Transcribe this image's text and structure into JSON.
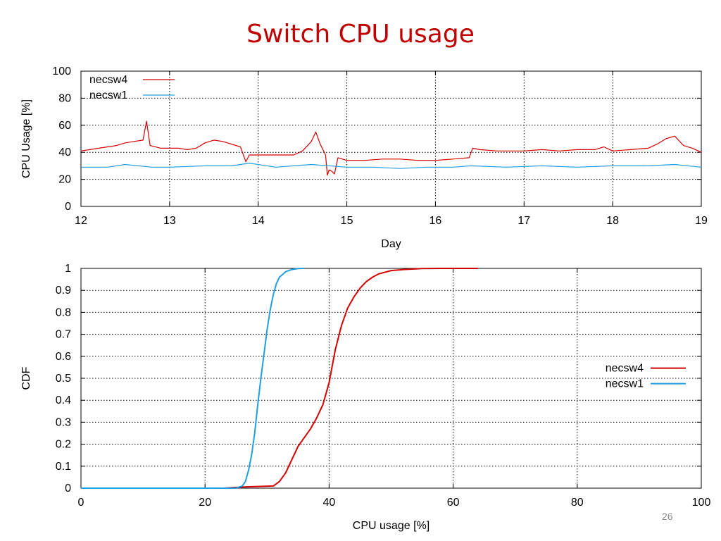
{
  "slide": {
    "title": "Switch CPU usage",
    "number": "26"
  },
  "colors": {
    "necsw4": "#d40000",
    "necsw1": "#1f9fe0",
    "title": "#c00000"
  },
  "chart_data": [
    {
      "type": "line",
      "title": "",
      "xlabel": "Day",
      "ylabel": "CPU Usage [%]",
      "xlim": [
        12,
        19
      ],
      "ylim": [
        0,
        100
      ],
      "xticks": [
        12,
        13,
        14,
        15,
        16,
        17,
        18,
        19
      ],
      "yticks": [
        0,
        20,
        40,
        60,
        80,
        100
      ],
      "grid": true,
      "legend": "top-left",
      "series": [
        {
          "name": "necsw4",
          "color": "#d40000",
          "x": [
            12.0,
            12.1,
            12.2,
            12.3,
            12.4,
            12.5,
            12.6,
            12.7,
            12.74,
            12.78,
            12.9,
            13.0,
            13.1,
            13.2,
            13.3,
            13.4,
            13.5,
            13.6,
            13.7,
            13.8,
            13.86,
            13.9,
            14.0,
            14.2,
            14.4,
            14.5,
            14.6,
            14.65,
            14.7,
            14.76,
            14.78,
            14.8,
            14.83,
            14.86,
            14.9,
            15.0,
            15.2,
            15.4,
            15.6,
            15.8,
            16.0,
            16.2,
            16.38,
            16.42,
            16.5,
            16.7,
            17.0,
            17.2,
            17.4,
            17.6,
            17.8,
            17.9,
            18.0,
            18.2,
            18.4,
            18.5,
            18.6,
            18.7,
            18.8,
            18.9,
            19.0
          ],
          "y": [
            41,
            42,
            43,
            44,
            45,
            47,
            48,
            49,
            63,
            45,
            43,
            43,
            43,
            42,
            43,
            47,
            49,
            48,
            46,
            44,
            33,
            38,
            38,
            38,
            38,
            41,
            48,
            55,
            46,
            38,
            23,
            27,
            26,
            24,
            36,
            34,
            34,
            35,
            35,
            34,
            34,
            35,
            36,
            43,
            42,
            41,
            41,
            42,
            41,
            42,
            42,
            44,
            41,
            42,
            43,
            46,
            50,
            52,
            45,
            43,
            40
          ]
        },
        {
          "name": "necsw1",
          "color": "#1f9fe0",
          "x": [
            12.0,
            12.3,
            12.5,
            12.8,
            13.0,
            13.4,
            13.7,
            13.9,
            14.2,
            14.6,
            15.0,
            15.3,
            15.6,
            15.9,
            16.2,
            16.4,
            16.8,
            17.2,
            17.6,
            18.0,
            18.4,
            18.7,
            19.0
          ],
          "y": [
            29,
            29,
            31,
            29,
            29,
            30,
            30,
            32,
            29,
            31,
            29,
            29,
            28,
            29,
            29,
            30,
            29,
            30,
            29,
            30,
            30,
            31,
            29
          ]
        }
      ]
    },
    {
      "type": "line",
      "title": "",
      "xlabel": "CPU usage [%]",
      "ylabel": "CDF",
      "xlim": [
        0,
        100
      ],
      "ylim": [
        0,
        1
      ],
      "xticks": [
        0,
        20,
        40,
        60,
        80,
        100
      ],
      "yticks": [
        0,
        0.1,
        0.2,
        0.3,
        0.4,
        0.5,
        0.6,
        0.7,
        0.8,
        0.9,
        1
      ],
      "grid": true,
      "legend": "right",
      "series": [
        {
          "name": "necsw4",
          "color": "#d40000",
          "x": [
            0,
            23,
            26,
            31,
            32,
            33,
            34,
            35,
            36,
            37,
            38,
            39,
            40,
            41,
            42,
            43,
            44,
            45,
            46,
            47,
            48,
            50,
            52,
            55,
            58,
            64
          ],
          "y": [
            0,
            0,
            0.005,
            0.01,
            0.03,
            0.07,
            0.13,
            0.19,
            0.23,
            0.27,
            0.32,
            0.38,
            0.48,
            0.63,
            0.74,
            0.82,
            0.87,
            0.91,
            0.94,
            0.96,
            0.975,
            0.99,
            0.995,
            0.999,
            1,
            1
          ]
        },
        {
          "name": "necsw1",
          "color": "#1f9fe0",
          "x": [
            0,
            25,
            26,
            26.5,
            27,
            27.5,
            28,
            28.5,
            29,
            29.5,
            30,
            30.5,
            31,
            31.5,
            32,
            33,
            34,
            35,
            36
          ],
          "y": [
            0,
            0,
            0.01,
            0.03,
            0.08,
            0.15,
            0.25,
            0.38,
            0.5,
            0.61,
            0.72,
            0.81,
            0.88,
            0.93,
            0.96,
            0.985,
            0.995,
            0.999,
            1
          ]
        }
      ]
    }
  ]
}
